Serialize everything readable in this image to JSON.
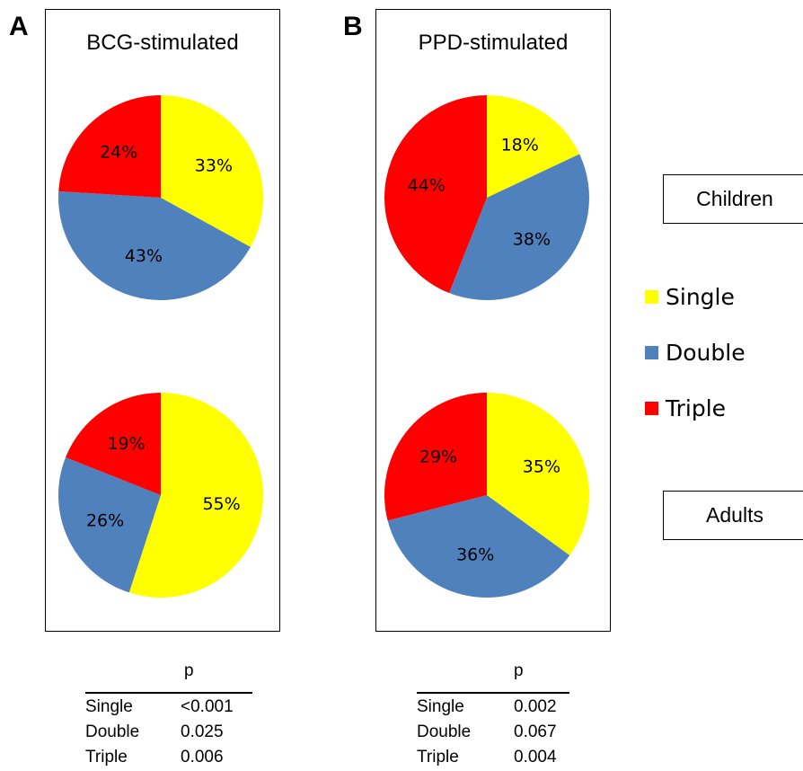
{
  "panels": {
    "a": {
      "letter": "A",
      "title": "BCG-stimulated"
    },
    "b": {
      "letter": "B",
      "title": "PPD-stimulated"
    }
  },
  "groups": {
    "children": "Children",
    "adults": "Adults"
  },
  "legend": [
    {
      "label": "Single",
      "color": "#ffff00"
    },
    {
      "label": "Double",
      "color": "#4f81bd"
    },
    {
      "label": "Triple",
      "color": "#ff0000"
    }
  ],
  "chart_data": [
    {
      "type": "pie",
      "title": "BCG-stimulated",
      "group": "Children",
      "categories": [
        "Single",
        "Double",
        "Triple"
      ],
      "values": [
        33,
        43,
        24
      ],
      "labels": [
        "33%",
        "43%",
        "24%"
      ]
    },
    {
      "type": "pie",
      "title": "BCG-stimulated",
      "group": "Adults",
      "categories": [
        "Single",
        "Double",
        "Triple"
      ],
      "values": [
        55,
        26,
        19
      ],
      "labels": [
        "55%",
        "26%",
        "19%"
      ]
    },
    {
      "type": "pie",
      "title": "PPD-stimulated",
      "group": "Children",
      "categories": [
        "Single",
        "Double",
        "Triple"
      ],
      "values": [
        18,
        38,
        44
      ],
      "labels": [
        "18%",
        "38%",
        "44%"
      ]
    },
    {
      "type": "pie",
      "title": "PPD-stimulated",
      "group": "Adults",
      "categories": [
        "Single",
        "Double",
        "Triple"
      ],
      "values": [
        35,
        36,
        29
      ],
      "labels": [
        "35%",
        "36%",
        "29%"
      ]
    },
    {
      "type": "table",
      "title": "BCG-stimulated",
      "header": "p",
      "rows": [
        {
          "label": "Single",
          "value": "<0.001"
        },
        {
          "label": "Double",
          "value": "0.025"
        },
        {
          "label": "Triple",
          "value": "0.006"
        }
      ]
    },
    {
      "type": "table",
      "title": "PPD-stimulated",
      "header": "p",
      "rows": [
        {
          "label": "Single",
          "value": "0.002"
        },
        {
          "label": "Double",
          "value": "0.067"
        },
        {
          "label": "Triple",
          "value": "0.004"
        }
      ]
    }
  ]
}
